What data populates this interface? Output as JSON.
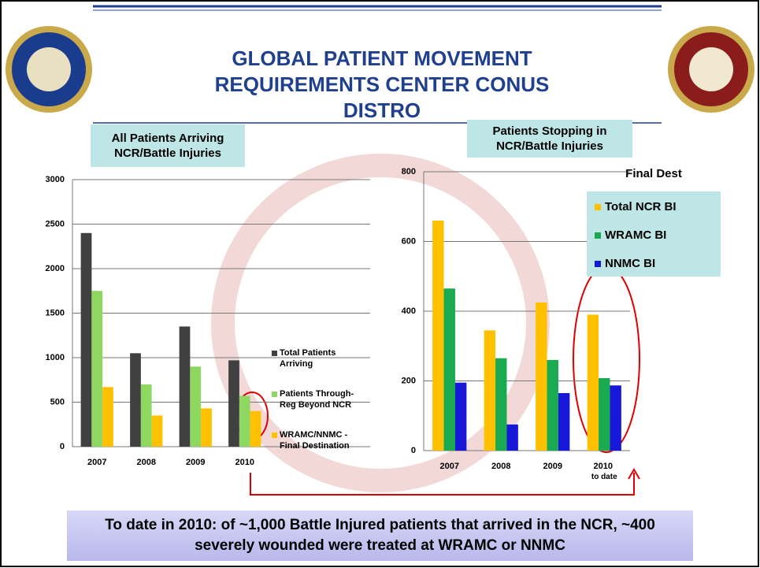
{
  "header": {
    "title": "GLOBAL PATIENT MOVEMENT REQUIREMENTS CENTER CONUS DISTRO"
  },
  "chart_data": [
    {
      "type": "bar",
      "title": "All Patients Arriving NCR/Battle Injuries",
      "categories": [
        "2007",
        "2008",
        "2009",
        "2010"
      ],
      "series": [
        {
          "name": "Total Patients Arriving",
          "color": "#404040",
          "values": [
            2400,
            1050,
            1350,
            970
          ]
        },
        {
          "name": "Patients Through-Reg Beyond NCR",
          "color": "#8ed862",
          "values": [
            1750,
            700,
            900,
            570
          ]
        },
        {
          "name": "WRAMC/NNMC - Final Destination",
          "color": "#ffc000",
          "values": [
            670,
            350,
            430,
            400
          ]
        }
      ],
      "ylim": [
        0,
        3000
      ],
      "yticks": [
        0,
        500,
        1000,
        1500,
        2000,
        2500,
        3000
      ],
      "grid": true
    },
    {
      "type": "bar",
      "title": "Patients Stopping in NCR/Battle Injuries",
      "legend_title": "Final Dest",
      "categories": [
        "2007",
        "2008",
        "2009",
        "2010 to date"
      ],
      "series": [
        {
          "name": "Total NCR BI",
          "color": "#ffc000",
          "values": [
            660,
            345,
            425,
            390
          ]
        },
        {
          "name": "WRAMC BI",
          "color": "#1aaa50",
          "values": [
            465,
            265,
            260,
            208
          ]
        },
        {
          "name": "NNMC BI",
          "color": "#1818d8",
          "values": [
            195,
            75,
            165,
            187
          ]
        }
      ],
      "ylim": [
        0,
        800
      ],
      "yticks": [
        0,
        200,
        400,
        600,
        800
      ],
      "grid": true
    }
  ],
  "footer": {
    "text": "To date in 2010: of ~1,000 Battle Injured patients that arrived in the NCR, ~400 severely wounded were treated at WRAMC or NNMC"
  }
}
